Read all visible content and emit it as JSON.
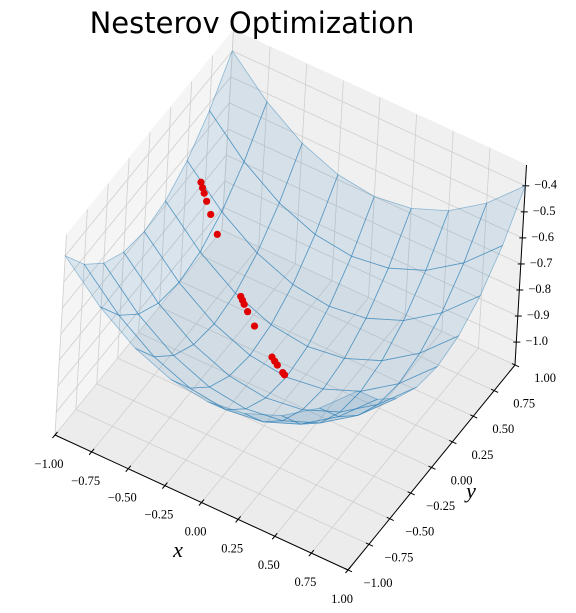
{
  "chart_data": {
    "type": "surface3d",
    "title": "Nesterov Optimization",
    "xlabel": "x",
    "ylabel": "y",
    "xlim": [
      -1,
      1
    ],
    "ylim": [
      -1,
      1
    ],
    "zlim": [
      -1.088,
      -0.32
    ],
    "xticks": [
      {
        "value": -1,
        "label": "−1.00"
      },
      {
        "value": -0.75,
        "label": "−0.75"
      },
      {
        "value": -0.5,
        "label": "−0.50"
      },
      {
        "value": -0.25,
        "label": "−0.25"
      },
      {
        "value": 0,
        "label": "0.00"
      },
      {
        "value": 0.25,
        "label": "0.25"
      },
      {
        "value": 0.5,
        "label": "0.50"
      },
      {
        "value": 0.75,
        "label": "0.75"
      },
      {
        "value": 1,
        "label": "1.00"
      }
    ],
    "yticks": [
      {
        "value": -1,
        "label": "−1.00"
      },
      {
        "value": -0.75,
        "label": "−0.75"
      },
      {
        "value": -0.5,
        "label": "−0.50"
      },
      {
        "value": -0.25,
        "label": "−0.25"
      },
      {
        "value": 0,
        "label": "0.00"
      },
      {
        "value": 0.25,
        "label": "0.25"
      },
      {
        "value": 0.5,
        "label": "0.50"
      },
      {
        "value": 0.75,
        "label": "0.75"
      },
      {
        "value": 1,
        "label": "1.00"
      }
    ],
    "zticks": [
      {
        "value": -1.0,
        "label": "−1.0"
      },
      {
        "value": -0.9,
        "label": "−0.9"
      },
      {
        "value": -0.8,
        "label": "−0.8"
      },
      {
        "value": -0.7,
        "label": "−0.7"
      },
      {
        "value": -0.6,
        "label": "−0.6"
      },
      {
        "value": -0.5,
        "label": "−0.5"
      },
      {
        "value": -0.4,
        "label": "−0.4"
      }
    ],
    "grid": true,
    "surface": {
      "color": "#1f77b4",
      "x": [
        -1,
        -0.75,
        -0.5,
        -0.25,
        0,
        0.25,
        0.5,
        0.75,
        1
      ],
      "y": [
        -1,
        -0.75,
        -0.5,
        -0.25,
        0,
        0.25,
        0.5,
        0.75,
        1
      ],
      "z": [
        [
          -0.4,
          -0.531,
          -0.625,
          -0.681,
          -0.7,
          -0.681,
          -0.625,
          -0.531,
          -0.4
        ],
        [
          -0.531,
          -0.662,
          -0.756,
          -0.812,
          -0.831,
          -0.812,
          -0.756,
          -0.662,
          -0.531
        ],
        [
          -0.625,
          -0.756,
          -0.85,
          -0.906,
          -0.925,
          -0.906,
          -0.85,
          -0.756,
          -0.625
        ],
        [
          -0.681,
          -0.812,
          -0.906,
          -0.962,
          -0.981,
          -0.962,
          -0.906,
          -0.812,
          -0.681
        ],
        [
          -0.7,
          -0.831,
          -0.925,
          -0.981,
          -1,
          -0.981,
          -0.925,
          -0.831,
          -0.7
        ],
        [
          -0.681,
          -0.812,
          -0.906,
          -0.962,
          -0.981,
          -0.962,
          -0.906,
          -0.812,
          -0.681
        ],
        [
          -0.625,
          -0.756,
          -0.85,
          -0.906,
          -0.925,
          -0.906,
          -0.85,
          -0.756,
          -0.625
        ],
        [
          -0.531,
          -0.662,
          -0.756,
          -0.812,
          -0.831,
          -0.812,
          -0.756,
          -0.662,
          -0.531
        ],
        [
          -0.4,
          -0.531,
          -0.625,
          -0.681,
          -0.7,
          -0.681,
          -0.625,
          -0.531,
          -0.4
        ]
      ]
    },
    "scatter": {
      "color": "#e00000",
      "x": [
        -0.9,
        -0.882,
        -0.864,
        -0.837,
        -0.792,
        -0.72,
        -0.468,
        -0.45,
        -0.432,
        -0.396,
        -0.324,
        -0.144,
        -0.117,
        -0.09,
        -0.036,
        -0.018
      ],
      "y": [
        0.5,
        0.49,
        0.48,
        0.465,
        0.44,
        0.4,
        0.26,
        0.25,
        0.24,
        0.22,
        0.18,
        0.08,
        0.065,
        0.05,
        0.02,
        0.01
      ],
      "z": [
        -0.682,
        -0.695,
        -0.707,
        -0.725,
        -0.754,
        -0.796,
        -0.914,
        -0.92,
        -0.927,
        -0.938,
        -0.959,
        -0.992,
        -0.995,
        -0.997,
        -1.0,
        -1.0
      ]
    }
  }
}
